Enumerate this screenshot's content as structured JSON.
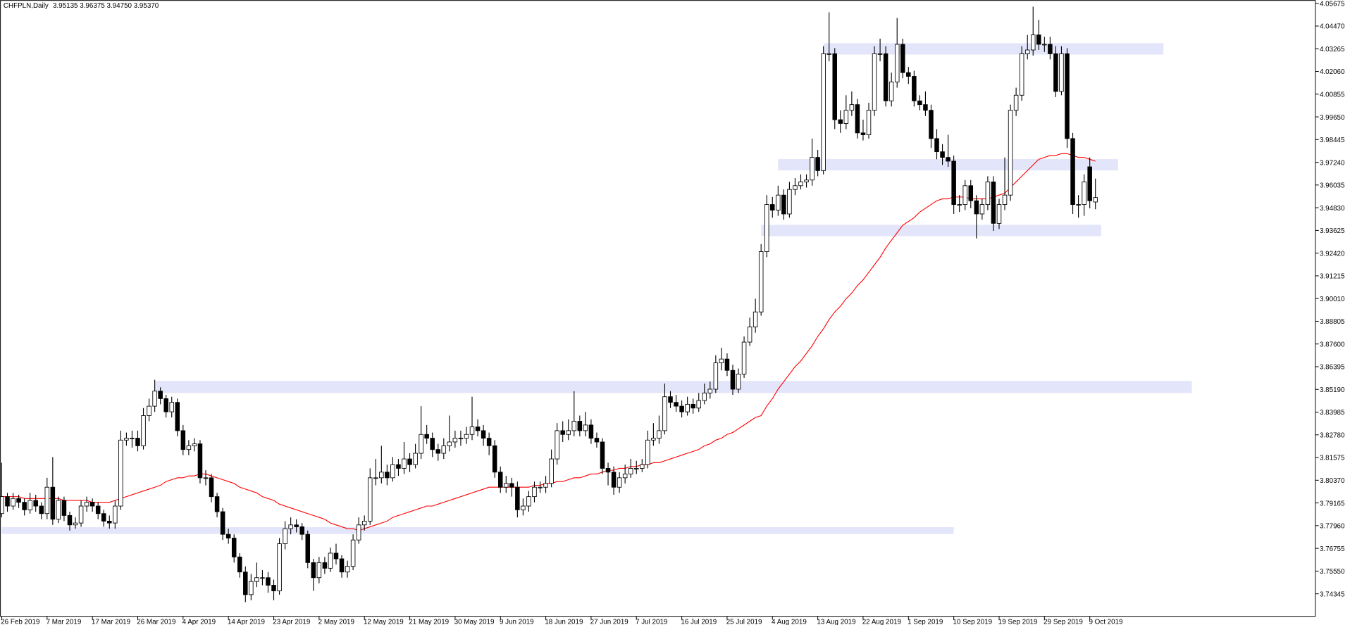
{
  "chart_data": {
    "type": "candlestick",
    "title": "CHFPLN,Daily",
    "ohlc_label": "3.95135 3.96375 3.94750 3.95370",
    "categories": [
      "26 Feb 2019",
      null,
      null,
      null,
      null,
      null,
      null,
      null,
      "7 Mar 2019",
      null,
      null,
      null,
      null,
      null,
      null,
      null,
      "17 Mar 2019",
      null,
      null,
      null,
      null,
      null,
      null,
      null,
      "26 Mar 2019",
      null,
      null,
      null,
      null,
      null,
      null,
      null,
      "4 Apr 2019",
      null,
      null,
      null,
      null,
      null,
      null,
      null,
      "14 Apr 2019",
      null,
      null,
      null,
      null,
      null,
      null,
      null,
      "23 Apr 2019",
      null,
      null,
      null,
      null,
      null,
      null,
      null,
      "2 May 2019",
      null,
      null,
      null,
      null,
      null,
      null,
      null,
      "12 May 2019",
      null,
      null,
      null,
      null,
      null,
      null,
      null,
      "21 May 2019",
      null,
      null,
      null,
      null,
      null,
      null,
      null,
      "30 May 2019",
      null,
      null,
      null,
      null,
      null,
      null,
      null,
      "9 Jun 2019",
      null,
      null,
      null,
      null,
      null,
      null,
      null,
      "18 Jun 2019",
      null,
      null,
      null,
      null,
      null,
      null,
      null,
      "27 Jun 2019",
      null,
      null,
      null,
      null,
      null,
      null,
      null,
      "7 Jul 2019",
      null,
      null,
      null,
      null,
      null,
      null,
      null,
      "16 Jul 2019",
      null,
      null,
      null,
      null,
      null,
      null,
      null,
      "25 Jul 2019",
      null,
      null,
      null,
      null,
      null,
      null,
      null,
      "4 Aug 2019",
      null,
      null,
      null,
      null,
      null,
      null,
      null,
      "13 Aug 2019",
      null,
      null,
      null,
      null,
      null,
      null,
      null,
      "22 Aug 2019",
      null,
      null,
      null,
      null,
      null,
      null,
      null,
      "1 Sep 2019",
      null,
      null,
      null,
      null,
      null,
      null,
      null,
      "10 Sep 2019",
      null,
      null,
      null,
      null,
      null,
      null,
      null,
      "19 Sep 2019",
      null,
      null,
      null,
      null,
      null,
      null,
      null,
      "29 Sep 2019",
      null,
      null,
      null,
      null,
      null,
      null,
      null,
      "9 Oct 2019",
      null
    ],
    "open": [
      3.786,
      3.795,
      3.79,
      3.794,
      3.792,
      3.788,
      3.793,
      3.79,
      3.786,
      3.8,
      3.783,
      3.793,
      3.785,
      3.78,
      3.781,
      3.79,
      3.792,
      3.79,
      3.786,
      3.782,
      3.781,
      3.79,
      3.825,
      3.826,
      3.826,
      3.822,
      3.838,
      3.843,
      3.851,
      3.847,
      3.84,
      3.845,
      3.83,
      3.82,
      3.822,
      3.823,
      3.805,
      3.805,
      3.795,
      3.787,
      3.775,
      3.773,
      3.763,
      3.755,
      3.743,
      3.75,
      3.752,
      3.752,
      3.748,
      3.745,
      3.77,
      3.778,
      3.78,
      3.779,
      3.775,
      3.76,
      3.752,
      3.76,
      3.757,
      3.765,
      3.762,
      3.755,
      3.758,
      3.772,
      3.78,
      3.782,
      3.805,
      3.805,
      3.808,
      3.805,
      3.812,
      3.81,
      3.815,
      3.812,
      3.818,
      3.828,
      3.826,
      3.82,
      3.818,
      3.822,
      3.824,
      3.826,
      3.826,
      3.828,
      3.832,
      3.83,
      3.826,
      3.822,
      3.808,
      3.8,
      3.802,
      3.8,
      3.788,
      3.79,
      3.795,
      3.8,
      3.8,
      3.802,
      3.815,
      3.83,
      3.828,
      3.83,
      3.835,
      3.83,
      3.833,
      3.826,
      3.824,
      3.81,
      3.808,
      3.8,
      3.805,
      3.807,
      3.81,
      3.81,
      3.812,
      3.825,
      3.826,
      3.83,
      3.848,
      3.845,
      3.843,
      3.84,
      3.844,
      3.842,
      3.846,
      3.85,
      3.852,
      3.866,
      3.868,
      3.862,
      3.852,
      3.86,
      3.877,
      3.885,
      3.893,
      3.925,
      3.95,
      3.947,
      3.955,
      3.945,
      3.958,
      3.96,
      3.962,
      3.963,
      3.975,
      3.968,
      4.03,
      4.03,
      3.995,
      3.993,
      4.0,
      4.003,
      3.988,
      3.987,
      4.0,
      4.03,
      4.03,
      4.005,
      4.015,
      4.035,
      4.02,
      4.018,
      4.005,
      4.003,
      4.0,
      3.985,
      3.978,
      3.975,
      3.973,
      3.95,
      3.95,
      3.96,
      3.952,
      3.945,
      3.95,
      3.962,
      3.94,
      3.95,
      3.955,
      4.0,
      4.008,
      4.03,
      4.032,
      4.04,
      4.035,
      4.035,
      4.03,
      4.01,
      4.03,
      3.985,
      3.95,
      3.95,
      3.97,
      3.95135
    ],
    "high": [
      3.813,
      3.797,
      3.797,
      3.796,
      3.794,
      3.797,
      3.796,
      3.792,
      3.805,
      3.816,
      3.795,
      3.795,
      3.787,
      3.784,
      3.793,
      3.795,
      3.794,
      3.792,
      3.788,
      3.785,
      3.793,
      3.83,
      3.829,
      3.83,
      3.83,
      3.842,
      3.847,
      3.857,
      3.853,
      3.849,
      3.848,
      3.847,
      3.833,
      3.825,
      3.826,
      3.825,
      3.809,
      3.807,
      3.797,
      3.789,
      3.778,
      3.775,
      3.765,
      3.758,
      3.754,
      3.76,
      3.756,
      3.755,
      3.751,
      3.773,
      3.782,
      3.784,
      3.783,
      3.781,
      3.777,
      3.762,
      3.763,
      3.763,
      3.768,
      3.77,
      3.764,
      3.761,
      3.775,
      3.784,
      3.785,
      3.81,
      3.815,
      3.822,
      3.812,
      3.816,
      3.815,
      3.824,
      3.818,
      3.823,
      3.843,
      3.833,
      3.829,
      3.823,
      3.826,
      3.838,
      3.83,
      3.83,
      3.832,
      3.848,
      3.836,
      3.833,
      3.829,
      3.825,
      3.811,
      3.806,
      3.805,
      3.803,
      3.794,
      3.798,
      3.803,
      3.803,
      3.806,
      3.82,
      3.834,
      3.835,
      3.836,
      3.851,
      3.838,
      3.84,
      3.836,
      3.829,
      3.826,
      3.813,
      3.811,
      3.808,
      3.812,
      3.815,
      3.814,
      3.815,
      3.83,
      3.834,
      3.838,
      3.855,
      3.851,
      3.849,
      3.846,
      3.848,
      3.847,
      3.85,
      3.855,
      3.856,
      3.87,
      3.874,
      3.871,
      3.865,
      3.863,
      3.88,
      3.89,
      3.9,
      3.929,
      3.955,
      3.954,
      3.96,
      3.958,
      3.962,
      3.964,
      3.966,
      3.966,
      3.985,
      3.979,
      4.034,
      4.052,
      4.033,
      4.0,
      4.008,
      4.01,
      4.006,
      3.995,
      4.004,
      4.034,
      4.038,
      4.034,
      4.02,
      4.049,
      4.038,
      4.023,
      4.021,
      4.008,
      4.01,
      4.003,
      3.99,
      3.982,
      3.987,
      3.976,
      3.955,
      3.963,
      3.963,
      3.955,
      3.953,
      3.965,
      3.965,
      3.953,
      3.975,
      4.003,
      4.012,
      4.034,
      4.04,
      4.055,
      4.048,
      4.039,
      4.039,
      4.034,
      4.034,
      4.033,
      3.988,
      3.955,
      3.966,
      3.975,
      3.96375
    ],
    "low": [
      3.784,
      3.787,
      3.788,
      3.789,
      3.785,
      3.786,
      3.787,
      3.783,
      3.783,
      3.78,
      3.781,
      3.782,
      3.777,
      3.778,
      3.779,
      3.787,
      3.787,
      3.783,
      3.779,
      3.778,
      3.778,
      3.788,
      3.822,
      3.821,
      3.819,
      3.82,
      3.835,
      3.84,
      3.844,
      3.837,
      3.837,
      3.827,
      3.817,
      3.817,
      3.819,
      3.802,
      3.801,
      3.792,
      3.784,
      3.772,
      3.77,
      3.76,
      3.752,
      3.739,
      3.74,
      3.747,
      3.748,
      3.744,
      3.74,
      3.743,
      3.767,
      3.775,
      3.776,
      3.772,
      3.757,
      3.745,
      3.749,
      3.754,
      3.755,
      3.759,
      3.752,
      3.752,
      3.756,
      3.77,
      3.777,
      3.78,
      3.801,
      3.802,
      3.801,
      3.803,
      3.806,
      3.807,
      3.808,
      3.81,
      3.815,
      3.823,
      3.816,
      3.814,
      3.815,
      3.819,
      3.821,
      3.822,
      3.823,
      3.825,
      3.827,
      3.822,
      3.817,
      3.805,
      3.797,
      3.797,
      3.795,
      3.784,
      3.785,
      3.787,
      3.792,
      3.797,
      3.797,
      3.8,
      3.812,
      3.824,
      3.825,
      3.827,
      3.827,
      3.827,
      3.823,
      3.821,
      3.807,
      3.801,
      3.796,
      3.797,
      3.802,
      3.805,
      3.807,
      3.808,
      3.81,
      3.822,
      3.823,
      3.828,
      3.842,
      3.84,
      3.837,
      3.838,
      3.839,
      3.84,
      3.844,
      3.847,
      3.85,
      3.862,
      3.859,
      3.849,
      3.85,
      3.858,
      3.875,
      3.882,
      3.891,
      3.922,
      3.943,
      3.944,
      3.942,
      3.943,
      3.955,
      3.958,
      3.959,
      3.96,
      3.965,
      3.966,
      4.026,
      3.99,
      3.988,
      3.99,
      3.997,
      3.985,
      3.984,
      3.985,
      3.997,
      4.026,
      4.002,
      4.002,
      4.012,
      4.017,
      4.014,
      4.002,
      4.0,
      3.997,
      3.98,
      3.974,
      3.971,
      3.97,
      3.945,
      3.946,
      3.947,
      3.948,
      3.932,
      3.942,
      3.947,
      3.936,
      3.937,
      3.947,
      3.952,
      3.997,
      4.005,
      4.027,
      4.029,
      4.032,
      4.031,
      4.027,
      4.007,
      4.008,
      3.98,
      3.945,
      3.943,
      3.944,
      3.948,
      3.9475
    ],
    "close": [
      3.795,
      3.79,
      3.794,
      3.792,
      3.788,
      3.793,
      3.79,
      3.786,
      3.8,
      3.783,
      3.793,
      3.785,
      3.78,
      3.781,
      3.79,
      3.792,
      3.79,
      3.786,
      3.782,
      3.781,
      3.79,
      3.825,
      3.826,
      3.826,
      3.822,
      3.838,
      3.843,
      3.851,
      3.847,
      3.84,
      3.845,
      3.83,
      3.82,
      3.822,
      3.823,
      3.805,
      3.805,
      3.795,
      3.787,
      3.775,
      3.773,
      3.763,
      3.755,
      3.743,
      3.75,
      3.752,
      3.752,
      3.748,
      3.745,
      3.77,
      3.778,
      3.78,
      3.779,
      3.775,
      3.76,
      3.752,
      3.76,
      3.757,
      3.765,
      3.762,
      3.755,
      3.758,
      3.772,
      3.78,
      3.782,
      3.805,
      3.805,
      3.808,
      3.805,
      3.812,
      3.81,
      3.815,
      3.812,
      3.818,
      3.828,
      3.826,
      3.82,
      3.818,
      3.822,
      3.824,
      3.826,
      3.826,
      3.828,
      3.832,
      3.83,
      3.826,
      3.822,
      3.808,
      3.8,
      3.802,
      3.8,
      3.788,
      3.79,
      3.795,
      3.8,
      3.8,
      3.802,
      3.815,
      3.83,
      3.828,
      3.83,
      3.835,
      3.83,
      3.833,
      3.826,
      3.824,
      3.81,
      3.808,
      3.8,
      3.805,
      3.807,
      3.81,
      3.81,
      3.812,
      3.825,
      3.826,
      3.83,
      3.848,
      3.845,
      3.843,
      3.84,
      3.844,
      3.842,
      3.846,
      3.85,
      3.852,
      3.866,
      3.868,
      3.862,
      3.852,
      3.86,
      3.877,
      3.885,
      3.893,
      3.925,
      3.95,
      3.947,
      3.955,
      3.945,
      3.958,
      3.96,
      3.962,
      3.963,
      3.975,
      3.968,
      4.03,
      4.03,
      3.995,
      3.993,
      4.0,
      4.003,
      3.988,
      3.987,
      4.0,
      4.03,
      4.03,
      4.005,
      4.015,
      4.035,
      4.02,
      4.018,
      4.005,
      4.003,
      4.0,
      3.985,
      3.978,
      3.975,
      3.973,
      3.95,
      3.95,
      3.96,
      3.952,
      3.945,
      3.95,
      3.962,
      3.94,
      3.95,
      3.955,
      4.0,
      4.008,
      4.03,
      4.032,
      4.04,
      4.035,
      4.035,
      4.03,
      4.01,
      4.03,
      3.985,
      3.95,
      3.95,
      3.962,
      3.952,
      3.9537
    ],
    "up_color": "#ffffff",
    "down_color": "#000000",
    "outline_color": "#000000",
    "ma": {
      "color": "#ff0000",
      "values": [
        3.795,
        3.795,
        3.795,
        3.795,
        3.794,
        3.794,
        3.794,
        3.794,
        3.794,
        3.794,
        3.794,
        3.793,
        3.793,
        3.793,
        3.793,
        3.793,
        3.792,
        3.792,
        3.792,
        3.792,
        3.793,
        3.794,
        3.795,
        3.796,
        3.797,
        3.798,
        3.799,
        3.8,
        3.801,
        3.803,
        3.804,
        3.805,
        3.805,
        3.806,
        3.806,
        3.807,
        3.807,
        3.806,
        3.805,
        3.804,
        3.803,
        3.802,
        3.8,
        3.799,
        3.798,
        3.797,
        3.795,
        3.794,
        3.793,
        3.791,
        3.79,
        3.789,
        3.788,
        3.787,
        3.786,
        3.785,
        3.784,
        3.783,
        3.781,
        3.78,
        3.779,
        3.778,
        3.778,
        3.777,
        3.778,
        3.779,
        3.78,
        3.781,
        3.782,
        3.784,
        3.785,
        3.786,
        3.787,
        3.788,
        3.789,
        3.79,
        3.79,
        3.791,
        3.792,
        3.793,
        3.794,
        3.795,
        3.796,
        3.797,
        3.798,
        3.799,
        3.8,
        3.8,
        3.8,
        3.8,
        3.8,
        3.8,
        3.8,
        3.8,
        3.801,
        3.801,
        3.802,
        3.802,
        3.803,
        3.803,
        3.804,
        3.805,
        3.805,
        3.806,
        3.807,
        3.807,
        3.808,
        3.809,
        3.809,
        3.81,
        3.81,
        3.811,
        3.811,
        3.812,
        3.812,
        3.813,
        3.813,
        3.814,
        3.815,
        3.816,
        3.817,
        3.818,
        3.819,
        3.82,
        3.822,
        3.823,
        3.825,
        3.826,
        3.828,
        3.829,
        3.831,
        3.833,
        3.835,
        3.837,
        3.838,
        3.843,
        3.847,
        3.852,
        3.856,
        3.86,
        3.864,
        3.867,
        3.871,
        3.875,
        3.88,
        3.884,
        3.889,
        3.893,
        3.896,
        3.9,
        3.903,
        3.907,
        3.91,
        3.914,
        3.918,
        3.922,
        3.927,
        3.931,
        3.935,
        3.939,
        3.941,
        3.943,
        3.946,
        3.948,
        3.95,
        3.952,
        3.953,
        3.953,
        3.954,
        3.954,
        3.954,
        3.953,
        3.953,
        3.953,
        3.953,
        3.954,
        3.955,
        3.956,
        3.959,
        3.962,
        3.965,
        3.968,
        3.971,
        3.974,
        3.975,
        3.976,
        3.976,
        3.977,
        3.977,
        3.976,
        3.975,
        3.975,
        3.974,
        3.973
      ]
    },
    "zone_color": "#e3e5fa",
    "zones": [
      {
        "x": [
          145,
          205
        ],
        "y": [
          4.0296,
          4.0356
        ]
      },
      {
        "x": [
          137,
          197
        ],
        "y": [
          3.9681,
          3.9741
        ]
      },
      {
        "x": [
          134,
          194
        ],
        "y": [
          3.9332,
          3.9392
        ]
      },
      {
        "x": [
          27,
          210
        ],
        "y": [
          3.85,
          3.8564
        ]
      },
      {
        "x": [
          0,
          168
        ],
        "y": [
          3.7752,
          3.7788
        ]
      }
    ],
    "ylim": [
      3.7315,
      4.0585
    ],
    "yticks": [
      4.05675,
      {
        "value": 4.0447,
        "label": "4.04470"
      },
      4.03265,
      {
        "value": 4.0206,
        "label": "4.02060"
      },
      4.00855,
      {
        "value": 3.9965,
        "label": "3.99650"
      },
      3.98445,
      {
        "value": 3.9724,
        "label": "3.97240"
      },
      3.96035,
      {
        "value": 3.9483,
        "label": "3.94830"
      },
      3.93625,
      {
        "value": 3.9242,
        "label": "3.92420"
      },
      3.91215,
      {
        "value": 3.9001,
        "label": "3.90010"
      },
      3.88805,
      {
        "value": 3.876,
        "label": "3.87600"
      },
      3.86395,
      {
        "value": 3.8519,
        "label": "3.85190"
      },
      3.83985,
      {
        "value": 3.8278,
        "label": "3.82780"
      },
      3.81575,
      {
        "value": 3.8037,
        "label": "3.80370"
      },
      3.79165,
      {
        "value": 3.7796,
        "label": "3.77960"
      },
      3.76755,
      {
        "value": 3.7555,
        "label": "3.75550"
      },
      3.74345
    ]
  }
}
